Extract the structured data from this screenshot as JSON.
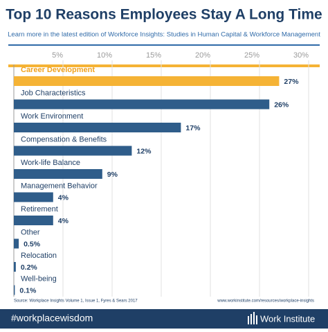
{
  "chart_data": {
    "type": "barh",
    "title": "Top 10 Reasons Employees Stay A Long Time",
    "subtitle": "Learn more in the latest edition of Workforce Insights: Studies in Human  Capital & Workforce Management",
    "categories": [
      "Career Development",
      "Job Characteristics",
      "Work Environment",
      "Compensation & Benefits",
      "Work-life Balance",
      "Management Behavior",
      "Retirement",
      "Other",
      "Relocation",
      "Well-being"
    ],
    "values": [
      27,
      26,
      17,
      12,
      9,
      4,
      4,
      0.5,
      0.2,
      0.1
    ],
    "value_labels": [
      "27%",
      "26%",
      "17%",
      "12%",
      "9%",
      "4%",
      "4%",
      "0.5%",
      "0.2%",
      "0.1%"
    ],
    "colors": [
      "#f5b335",
      "#2f5d8a",
      "#2f5d8a",
      "#2f5d8a",
      "#2f5d8a",
      "#2f5d8a",
      "#2f5d8a",
      "#2f5d8a",
      "#2f5d8a",
      "#2f5d8a"
    ],
    "xlim": [
      0,
      30
    ],
    "xticks": [
      {
        "value": 5,
        "label": "5%"
      },
      {
        "value": 10,
        "label": "10%"
      },
      {
        "value": 15,
        "label": "15%"
      },
      {
        "value": 20,
        "label": "20%"
      },
      {
        "value": 25,
        "label": "25%"
      },
      {
        "value": 30,
        "label": "30%"
      }
    ],
    "grid": true,
    "source": "Source: Workplace Insights Volume 1, Issue 1, Fyres & Sears 2017",
    "url": "www.workinstitute.com/resources/workplace-insights",
    "hashtag": "#workplacewisdom",
    "brand": "Work Institute"
  }
}
